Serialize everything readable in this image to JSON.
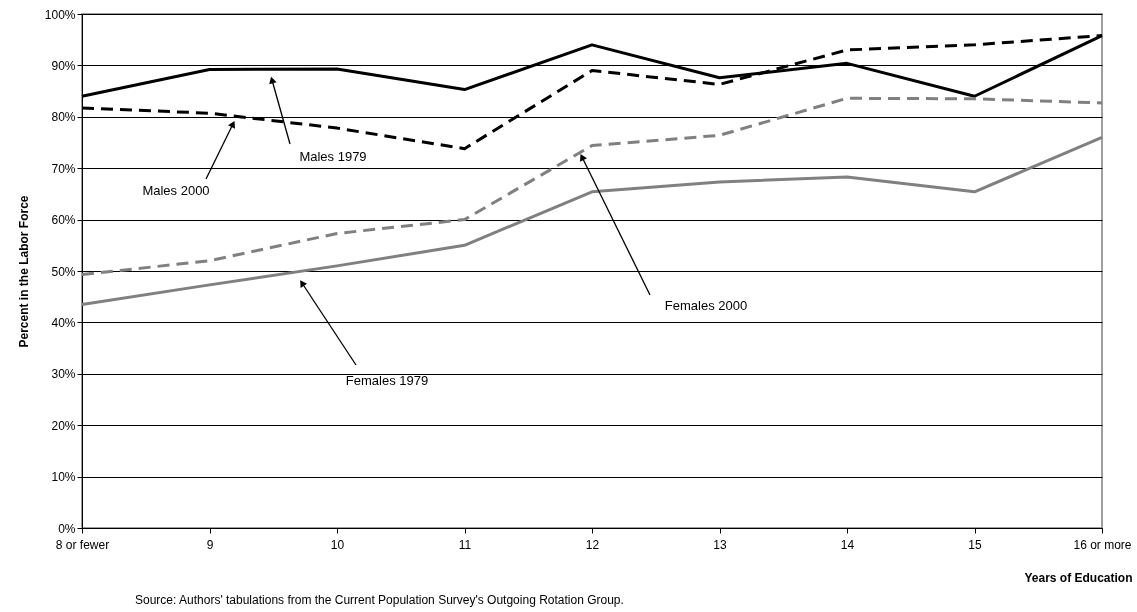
{
  "chart_data": {
    "type": "line",
    "xlabel": "Years of Education",
    "ylabel": "Percent in the Labor Force",
    "categories": [
      "8 or fewer",
      "9",
      "10",
      "11",
      "12",
      "13",
      "14",
      "15",
      "16 or more"
    ],
    "series": [
      {
        "name": "Males 1979",
        "color": "#000000",
        "line_style": "solid",
        "values": [
          84.0,
          89.2,
          89.3,
          85.3,
          94.0,
          87.6,
          90.4,
          84.0,
          95.8
        ]
      },
      {
        "name": "Males 2000",
        "color": "#000000",
        "line_style": "dashed",
        "values": [
          81.7,
          80.7,
          77.8,
          73.8,
          89.0,
          86.3,
          93.0,
          94.0,
          95.8
        ]
      },
      {
        "name": "Females 1979",
        "color": "#808080",
        "line_style": "solid",
        "values": [
          43.5,
          47.3,
          51.0,
          55.0,
          65.4,
          67.3,
          68.3,
          65.4,
          76.0
        ]
      },
      {
        "name": "Females 2000",
        "color": "#808080",
        "line_style": "dashed",
        "values": [
          49.3,
          52.0,
          57.3,
          60.0,
          74.4,
          76.4,
          83.6,
          83.5,
          82.7
        ]
      }
    ],
    "ylim": [
      0,
      100
    ],
    "yticks": [
      {
        "value": 0,
        "label": "0%"
      },
      {
        "value": 10,
        "label": "10%"
      },
      {
        "value": 20,
        "label": "20%"
      },
      {
        "value": 30,
        "label": "30%"
      },
      {
        "value": 40,
        "label": "40%"
      },
      {
        "value": 50,
        "label": "50%"
      },
      {
        "value": 60,
        "label": "60%"
      },
      {
        "value": 70,
        "label": "70%"
      },
      {
        "value": 80,
        "label": "80%"
      },
      {
        "value": 90,
        "label": "90%"
      },
      {
        "value": 100,
        "label": "100%"
      }
    ],
    "grid": "y",
    "marker": "none",
    "annotations": [
      "Source:  Authors' tabulations from the Current Population Survey's Outgoing Rotation Group."
    ]
  }
}
